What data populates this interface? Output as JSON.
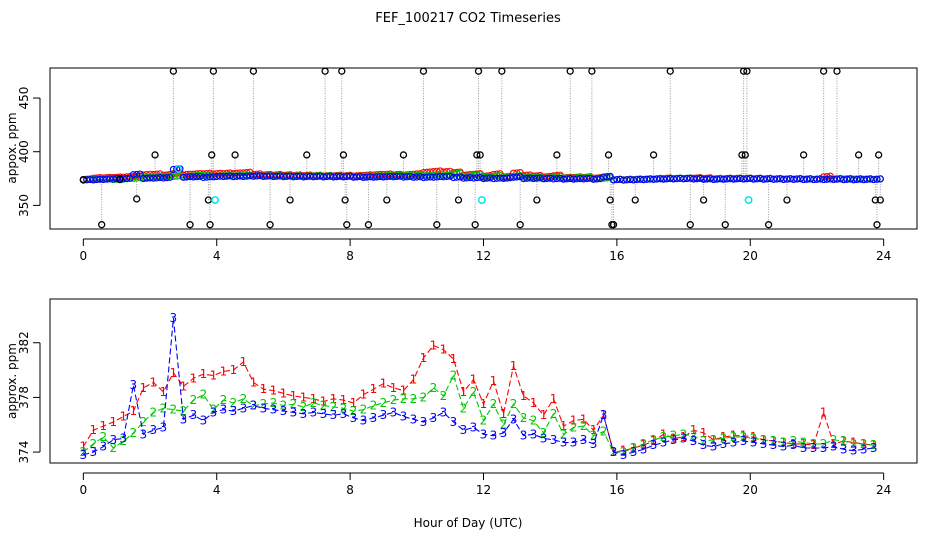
{
  "chart_data": [
    {
      "type": "scatter",
      "title": "FEF_100217  CO2 Timeseries",
      "xlabel": "",
      "ylabel": "appox. ppm",
      "xlim": [
        -1,
        25
      ],
      "ylim": [
        328,
        478
      ],
      "xticks": [
        0,
        4,
        8,
        12,
        16,
        20,
        24
      ],
      "yticks": [
        350,
        400,
        450
      ],
      "colors": {
        "black": "#000000",
        "red": "#ff0000",
        "green": "#00c800",
        "blue": "#0000ff",
        "cyan": "#00e5ee",
        "connector": "#9a9a9a"
      },
      "series": [
        {
          "name": "black",
          "symbol": "circle",
          "x": [
            0.0,
            0.55,
            1.1,
            1.6,
            2.15,
            2.7,
            3.2,
            3.75,
            3.8,
            3.85,
            3.9,
            4.55,
            5.1,
            5.6,
            6.2,
            6.7,
            7.25,
            7.75,
            7.8,
            7.85,
            7.9,
            8.55,
            9.1,
            9.6,
            10.2,
            10.6,
            11.25,
            11.75,
            11.8,
            11.85,
            11.9,
            12.55,
            13.1,
            13.6,
            14.2,
            14.6,
            15.25,
            15.75,
            15.8,
            15.85,
            15.9,
            16.55,
            17.1,
            17.6,
            18.2,
            18.6,
            19.25,
            19.75,
            19.8,
            19.85,
            19.9,
            20.55,
            21.1,
            21.6,
            22.2,
            22.6,
            23.25,
            23.75,
            23.8,
            23.85,
            23.9
          ],
          "y": [
            374,
            332,
            374,
            356,
            397,
            475,
            332,
            355,
            332,
            397,
            475,
            397,
            475,
            332,
            355,
            397,
            475,
            475,
            397,
            355,
            332,
            332,
            355,
            397,
            475,
            332,
            355,
            332,
            397,
            475,
            397,
            475,
            332,
            355,
            397,
            475,
            475,
            397,
            355,
            332,
            332,
            355,
            397,
            475,
            332,
            355,
            332,
            397,
            475,
            397,
            475,
            332,
            355,
            397,
            475,
            475,
            397,
            355,
            332,
            397,
            355
          ]
        },
        {
          "name": "cyan",
          "symbol": "circle",
          "x": [
            2.85,
            3.95,
            11.95,
            19.95
          ],
          "y": [
            384,
            355,
            355,
            355
          ]
        }
      ]
    },
    {
      "type": "line",
      "title": "",
      "xlabel": "Hour of Day (UTC)",
      "ylabel": "approx. ppm",
      "xlim": [
        -1,
        25
      ],
      "ylim": [
        373.2,
        385.2
      ],
      "xticks": [
        0,
        4,
        8,
        12,
        16,
        20,
        24
      ],
      "yticks": [
        374,
        378,
        382
      ],
      "series": [
        {
          "name": "1",
          "color": "#ff0000",
          "x": [
            0.0,
            0.3,
            0.6,
            0.9,
            1.2,
            1.5,
            1.8,
            2.1,
            2.4,
            2.7,
            3.0,
            3.3,
            3.6,
            3.9,
            4.2,
            4.5,
            4.8,
            5.1,
            5.4,
            5.7,
            6.0,
            6.3,
            6.6,
            6.9,
            7.2,
            7.5,
            7.8,
            8.1,
            8.4,
            8.7,
            9.0,
            9.3,
            9.6,
            9.9,
            10.2,
            10.5,
            10.8,
            11.1,
            11.4,
            11.7,
            12.0,
            12.3,
            12.6,
            12.9,
            13.2,
            13.5,
            13.8,
            14.1,
            14.4,
            14.7,
            15.0,
            15.3,
            15.6,
            15.9,
            16.2,
            16.5,
            16.8,
            17.1,
            17.4,
            17.7,
            18.0,
            18.3,
            18.6,
            18.9,
            19.2,
            19.5,
            19.8,
            20.1,
            20.4,
            20.7,
            21.0,
            21.3,
            21.6,
            21.9,
            22.2,
            22.5,
            22.8,
            23.1,
            23.4,
            23.7
          ],
          "y": [
            374.4,
            375.6,
            375.9,
            376.2,
            376.6,
            377.0,
            378.7,
            379.1,
            378.4,
            379.8,
            378.8,
            379.4,
            379.7,
            379.6,
            379.9,
            380.0,
            380.6,
            379.1,
            378.6,
            378.5,
            378.3,
            378.1,
            378.0,
            377.9,
            377.7,
            377.9,
            377.8,
            377.6,
            378.2,
            378.6,
            379.0,
            378.7,
            378.5,
            379.3,
            380.9,
            381.8,
            381.5,
            380.8,
            378.4,
            379.3,
            377.5,
            379.2,
            376.8,
            380.3,
            378.1,
            377.6,
            376.7,
            377.9,
            375.9,
            376.3,
            376.4,
            375.6,
            376.7,
            374.0,
            374.1,
            374.3,
            374.5,
            374.8,
            375.3,
            375.0,
            375.1,
            375.6,
            375.4,
            374.9,
            375.1,
            375.2,
            375.2,
            375.1,
            374.9,
            374.8,
            374.7,
            374.6,
            374.6,
            374.5,
            376.9,
            374.6,
            374.8,
            374.7,
            374.6,
            374.5
          ]
        },
        {
          "name": "2",
          "color": "#00c800",
          "x": [
            0.0,
            0.3,
            0.6,
            0.9,
            1.2,
            1.5,
            1.8,
            2.1,
            2.4,
            2.7,
            3.0,
            3.3,
            3.6,
            3.9,
            4.2,
            4.5,
            4.8,
            5.1,
            5.4,
            5.7,
            6.0,
            6.3,
            6.6,
            6.9,
            7.2,
            7.5,
            7.8,
            8.1,
            8.4,
            8.7,
            9.0,
            9.3,
            9.6,
            9.9,
            10.2,
            10.5,
            10.8,
            11.1,
            11.4,
            11.7,
            12.0,
            12.3,
            12.6,
            12.9,
            13.2,
            13.5,
            13.8,
            14.1,
            14.4,
            14.7,
            15.0,
            15.3,
            15.6,
            15.9,
            16.2,
            16.5,
            16.8,
            17.1,
            17.4,
            17.7,
            18.0,
            18.3,
            18.6,
            18.9,
            19.2,
            19.5,
            19.8,
            20.1,
            20.4,
            20.7,
            21.0,
            21.3,
            21.6,
            21.9,
            22.2,
            22.5,
            22.8,
            23.1,
            23.4,
            23.7
          ],
          "y": [
            374.0,
            374.6,
            375.1,
            374.3,
            374.8,
            375.4,
            376.2,
            376.9,
            377.2,
            377.1,
            377.0,
            377.8,
            378.2,
            377.1,
            377.8,
            377.6,
            377.9,
            377.4,
            377.5,
            377.6,
            377.4,
            377.5,
            377.3,
            377.6,
            377.4,
            377.3,
            377.2,
            377.0,
            377.1,
            377.4,
            377.6,
            377.8,
            377.9,
            377.9,
            378.0,
            378.7,
            378.1,
            379.6,
            377.2,
            378.4,
            376.3,
            377.5,
            376.0,
            377.5,
            376.5,
            376.3,
            375.4,
            376.8,
            375.3,
            375.8,
            375.9,
            375.2,
            375.5,
            374.0,
            374.0,
            374.3,
            374.6,
            374.9,
            375.1,
            375.2,
            375.3,
            375.2,
            374.8,
            374.9,
            375.0,
            375.1,
            375.1,
            375.0,
            374.9,
            374.8,
            374.7,
            374.8,
            374.7,
            374.6,
            374.6,
            374.9,
            374.8,
            374.6,
            374.6,
            374.5
          ]
        },
        {
          "name": "3",
          "color": "#0000ff",
          "x": [
            0.0,
            0.3,
            0.6,
            0.9,
            1.2,
            1.5,
            1.8,
            2.1,
            2.4,
            2.7,
            3.0,
            3.3,
            3.6,
            3.9,
            4.2,
            4.5,
            4.8,
            5.1,
            5.4,
            5.7,
            6.0,
            6.3,
            6.6,
            6.9,
            7.2,
            7.5,
            7.8,
            8.1,
            8.4,
            8.7,
            9.0,
            9.3,
            9.6,
            9.9,
            10.2,
            10.5,
            10.8,
            11.1,
            11.4,
            11.7,
            12.0,
            12.3,
            12.6,
            12.9,
            13.2,
            13.5,
            13.8,
            14.1,
            14.4,
            14.7,
            15.0,
            15.3,
            15.6,
            15.9,
            16.2,
            16.5,
            16.8,
            17.1,
            17.4,
            17.7,
            18.0,
            18.3,
            18.6,
            18.9,
            19.2,
            19.5,
            19.8,
            20.1,
            20.4,
            20.7,
            21.0,
            21.3,
            21.6,
            21.9,
            22.2,
            22.5,
            22.8,
            23.1,
            23.4,
            23.7
          ],
          "y": [
            373.8,
            374.0,
            374.4,
            374.9,
            375.0,
            378.9,
            375.3,
            375.6,
            375.8,
            383.8,
            376.4,
            376.7,
            376.3,
            376.9,
            377.1,
            377.0,
            377.2,
            377.4,
            377.2,
            377.1,
            377.0,
            376.9,
            376.8,
            376.9,
            376.8,
            376.7,
            376.8,
            376.5,
            376.3,
            376.5,
            376.7,
            376.9,
            376.6,
            376.4,
            376.2,
            376.5,
            376.9,
            376.2,
            375.6,
            375.8,
            375.3,
            375.2,
            375.4,
            376.4,
            375.2,
            375.3,
            375.0,
            374.9,
            374.7,
            374.7,
            374.9,
            374.6,
            376.7,
            374.0,
            373.8,
            374.0,
            374.2,
            374.5,
            374.7,
            374.9,
            375.0,
            374.8,
            374.5,
            374.4,
            374.6,
            374.7,
            374.8,
            374.7,
            374.6,
            374.5,
            374.4,
            374.5,
            374.3,
            374.3,
            374.3,
            374.4,
            374.2,
            374.1,
            374.2,
            374.3
          ]
        }
      ]
    }
  ]
}
